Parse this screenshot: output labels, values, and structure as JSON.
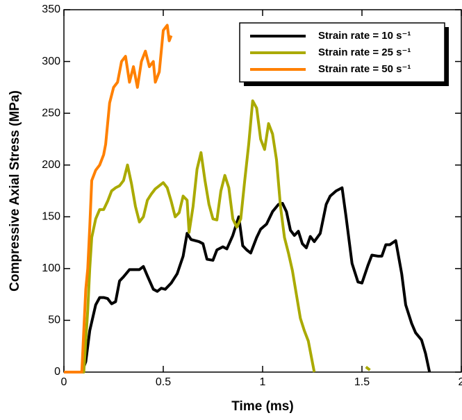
{
  "chart_data": {
    "type": "line",
    "xlabel": "Time (ms)",
    "ylabel": "Compressive Axial Stress (MPa)",
    "xlim": [
      0,
      2
    ],
    "ylim": [
      0,
      350
    ],
    "xticks": [
      0,
      0.5,
      1,
      1.5,
      2
    ],
    "yticks": [
      0,
      50,
      100,
      150,
      200,
      250,
      300,
      350
    ],
    "legend": "upper right",
    "series": [
      {
        "name": "Strain rate = 10 s⁻¹",
        "color": "#000000",
        "x": [
          0,
          0.09,
          0.11,
          0.13,
          0.16,
          0.18,
          0.2,
          0.22,
          0.24,
          0.26,
          0.28,
          0.3,
          0.33,
          0.36,
          0.38,
          0.4,
          0.42,
          0.45,
          0.47,
          0.49,
          0.51,
          0.54,
          0.57,
          0.6,
          0.62,
          0.64,
          0.68,
          0.7,
          0.72,
          0.75,
          0.77,
          0.8,
          0.82,
          0.85,
          0.88,
          0.9,
          0.92,
          0.94,
          0.97,
          0.99,
          1.02,
          1.05,
          1.08,
          1.1,
          1.12,
          1.14,
          1.16,
          1.18,
          1.2,
          1.22,
          1.24,
          1.26,
          1.29,
          1.32,
          1.34,
          1.37,
          1.4,
          1.42,
          1.45,
          1.48,
          1.5,
          1.53,
          1.55,
          1.58,
          1.6,
          1.62,
          1.64,
          1.67,
          1.7,
          1.72,
          1.75,
          1.77,
          1.8,
          1.82,
          1.84
        ],
        "values": [
          0,
          0,
          10,
          40,
          65,
          72,
          72,
          71,
          66,
          68,
          88,
          92,
          99,
          99,
          99,
          102,
          93,
          80,
          78,
          81,
          80,
          86,
          95,
          112,
          134,
          128,
          126,
          124,
          109,
          108,
          118,
          121,
          119,
          132,
          150,
          122,
          118,
          115,
          130,
          138,
          143,
          155,
          162,
          163,
          155,
          137,
          132,
          136,
          124,
          120,
          131,
          126,
          134,
          162,
          170,
          175,
          178,
          150,
          105,
          87,
          86,
          103,
          113,
          112,
          112,
          123,
          123,
          127,
          95,
          65,
          47,
          38,
          31,
          18,
          0
        ]
      },
      {
        "name": "Strain rate = 25 s⁻¹",
        "color": "#aaaa00",
        "x": [
          0,
          0.1,
          0.12,
          0.13,
          0.14,
          0.16,
          0.18,
          0.2,
          0.22,
          0.24,
          0.26,
          0.28,
          0.3,
          0.32,
          0.34,
          0.36,
          0.38,
          0.4,
          0.42,
          0.44,
          0.46,
          0.48,
          0.5,
          0.52,
          0.54,
          0.56,
          0.58,
          0.6,
          0.62,
          0.63,
          0.65,
          0.67,
          0.69,
          0.71,
          0.73,
          0.75,
          0.77,
          0.79,
          0.81,
          0.83,
          0.85,
          0.87,
          0.89,
          0.91,
          0.93,
          0.95,
          0.97,
          0.99,
          1.01,
          1.03,
          1.05,
          1.07,
          1.09,
          1.11,
          1.13,
          1.15,
          1.17,
          1.19,
          1.21,
          1.23,
          1.25,
          1.26,
          1.4,
          1.52,
          1.54
        ],
        "values": [
          0,
          0,
          60,
          100,
          130,
          148,
          157,
          157,
          165,
          175,
          178,
          180,
          185,
          200,
          182,
          160,
          145,
          150,
          166,
          172,
          177,
          180,
          183,
          178,
          165,
          150,
          154,
          170,
          166,
          135,
          160,
          196,
          212,
          185,
          162,
          148,
          147,
          175,
          190,
          178,
          148,
          140,
          148,
          185,
          220,
          262,
          255,
          225,
          215,
          240,
          230,
          205,
          160,
          130,
          115,
          98,
          75,
          52,
          40,
          30,
          10,
          0,
          null,
          5,
          2
        ]
      },
      {
        "name": "Strain rate = 50 s⁻¹",
        "color": "#ff8000",
        "x": [
          0,
          0.09,
          0.1,
          0.11,
          0.12,
          0.13,
          0.14,
          0.16,
          0.18,
          0.2,
          0.21,
          0.23,
          0.25,
          0.27,
          0.29,
          0.31,
          0.33,
          0.35,
          0.37,
          0.39,
          0.41,
          0.43,
          0.45,
          0.46,
          0.48,
          0.5,
          0.52,
          0.53,
          0.54
        ],
        "values": [
          0,
          0,
          40,
          80,
          100,
          140,
          185,
          195,
          200,
          210,
          220,
          260,
          275,
          280,
          300,
          305,
          280,
          295,
          275,
          300,
          310,
          295,
          300,
          280,
          290,
          330,
          335,
          320,
          325
        ]
      }
    ]
  }
}
